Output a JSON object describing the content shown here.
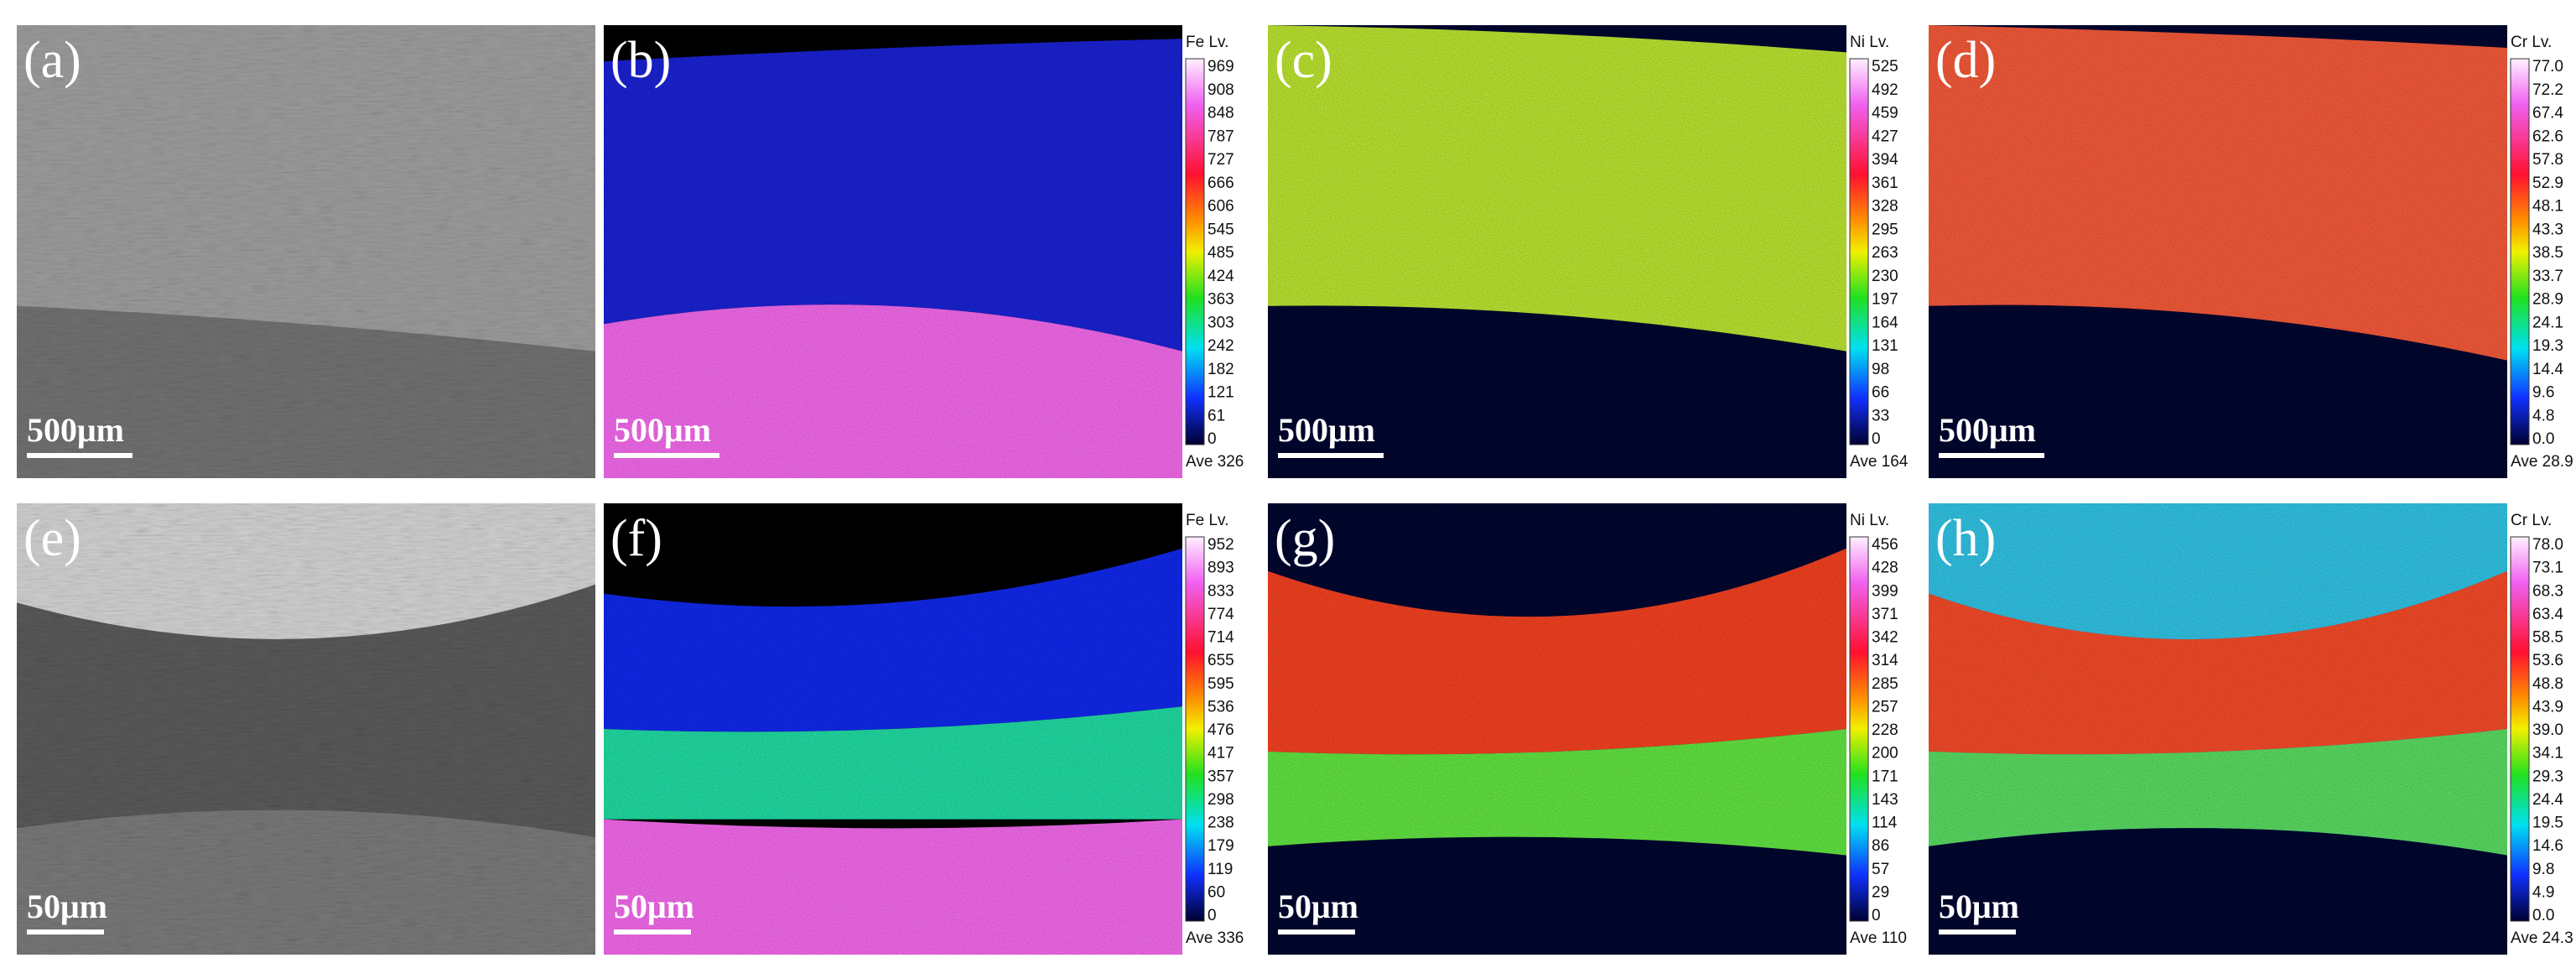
{
  "panels": [
    {
      "label": "(a)",
      "scale_bar": "500μm"
    },
    {
      "label": "(b)",
      "scale_bar": "500μm",
      "colorbar": {
        "title": "Fe Lv.",
        "ticks": [
          "969",
          "908",
          "848",
          "787",
          "727",
          "666",
          "606",
          "545",
          "485",
          "424",
          "363",
          "303",
          "242",
          "182",
          "121",
          "61",
          "0"
        ],
        "average": "Ave 326"
      }
    },
    {
      "label": "(c)",
      "scale_bar": "500μm",
      "colorbar": {
        "title": "Ni Lv.",
        "ticks": [
          "525",
          "492",
          "459",
          "427",
          "394",
          "361",
          "328",
          "295",
          "263",
          "230",
          "197",
          "164",
          "131",
          "98",
          "66",
          "33",
          "0"
        ],
        "average": "Ave 164"
      }
    },
    {
      "label": "(d)",
      "scale_bar": "500μm",
      "colorbar": {
        "title": "Cr Lv.",
        "ticks": [
          "77.0",
          "72.2",
          "67.4",
          "62.6",
          "57.8",
          "52.9",
          "48.1",
          "43.3",
          "38.5",
          "33.7",
          "28.9",
          "24.1",
          "19.3",
          "14.4",
          "9.6",
          "4.8",
          "0.0"
        ],
        "average": "Ave 28.9"
      }
    },
    {
      "label": "(e)",
      "scale_bar": "50μm"
    },
    {
      "label": "(f)",
      "scale_bar": "50μm",
      "colorbar": {
        "title": "Fe Lv.",
        "ticks": [
          "952",
          "893",
          "833",
          "774",
          "714",
          "655",
          "595",
          "536",
          "476",
          "417",
          "357",
          "298",
          "238",
          "179",
          "119",
          "60",
          "0"
        ],
        "average": "Ave 336"
      }
    },
    {
      "label": "(g)",
      "scale_bar": "50μm",
      "colorbar": {
        "title": "Ni Lv.",
        "ticks": [
          "456",
          "428",
          "399",
          "371",
          "342",
          "314",
          "285",
          "257",
          "228",
          "200",
          "171",
          "143",
          "114",
          "86",
          "57",
          "29",
          "0"
        ],
        "average": "Ave 110"
      }
    },
    {
      "label": "(h)",
      "scale_bar": "50μm",
      "colorbar": {
        "title": "Cr Lv.",
        "ticks": [
          "78.0",
          "73.1",
          "68.3",
          "63.4",
          "58.5",
          "53.6",
          "48.8",
          "43.9",
          "39.0",
          "34.1",
          "29.3",
          "24.4",
          "19.5",
          "14.6",
          "9.8",
          "4.9",
          "0.0"
        ],
        "average": "Ave 24.3"
      }
    }
  ]
}
